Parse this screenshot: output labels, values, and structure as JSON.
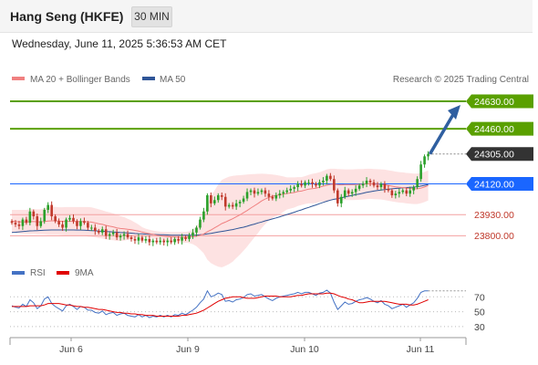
{
  "header": {
    "title": "Hang Seng (HKFE)",
    "timeframe": "30 MIN"
  },
  "date_line": "Wednesday, June 11, 2025 5:36:53 AM CET",
  "legend": {
    "ma20": {
      "label": "MA 20 + Bollinger Bands",
      "color": "#f08080"
    },
    "ma50": {
      "label": "MA 50",
      "color": "#2f5597"
    },
    "credit": "Research © 2025 Trading Central",
    "rsi": {
      "label": "RSI",
      "color": "#4472c4"
    },
    "rsi_ma": {
      "label": "9MA",
      "color": "#e00000"
    }
  },
  "colors": {
    "up": "#2aa02a",
    "down": "#c0392b",
    "resistance": "#5aa000",
    "pivot": "#1a66ff",
    "support": "#f4a0a0",
    "last": "#333333",
    "bands": "#fde2e2",
    "arrow": "#2f5fa0"
  },
  "chart_data": {
    "type": "candlestick",
    "price_range": [
      23650,
      24720
    ],
    "x_labels": [
      "Jun 6",
      "Jun 9",
      "Jun 10",
      "Jun 11"
    ],
    "levels": [
      {
        "value": 24630,
        "label": "24630.00",
        "kind": "resistance"
      },
      {
        "value": 24460,
        "label": "24460.00",
        "kind": "resistance"
      },
      {
        "value": 24305,
        "label": "24305.00",
        "kind": "last"
      },
      {
        "value": 24120,
        "label": "24120.00",
        "kind": "pivot"
      },
      {
        "value": 23930,
        "label": "23930.00",
        "kind": "support"
      },
      {
        "value": 23800,
        "label": "23800.00",
        "kind": "support"
      }
    ],
    "close": [
      23880,
      23870,
      23860,
      23900,
      23880,
      23950,
      23920,
      23860,
      23890,
      23960,
      23990,
      23920,
      23890,
      23870,
      23850,
      23900,
      23910,
      23890,
      23860,
      23890,
      23880,
      23850,
      23850,
      23830,
      23820,
      23840,
      23800,
      23810,
      23820,
      23790,
      23800,
      23810,
      23790,
      23780,
      23770,
      23790,
      23770,
      23780,
      23760,
      23770,
      23760,
      23770,
      23760,
      23770,
      23760,
      23780,
      23770,
      23790,
      23780,
      23800,
      23820,
      23850,
      23900,
      23950,
      24050,
      24000,
      24020,
      24050,
      24040,
      23980,
      23990,
      23980,
      24000,
      24010,
      24030,
      24070,
      24080,
      24060,
      24070,
      24080,
      24060,
      24040,
      24030,
      24050,
      24060,
      24070,
      24080,
      24090,
      24100,
      24120,
      24110,
      24130,
      24130,
      24120,
      24110,
      24130,
      24140,
      24170,
      24150,
      24080,
      24000,
      24040,
      24080,
      24060,
      24070,
      24090,
      24110,
      24120,
      24140,
      24130,
      24110,
      24100,
      24120,
      24090,
      24080,
      24050,
      24060,
      24070,
      24080,
      24060,
      24080,
      24100,
      24150,
      24240,
      24290,
      24305
    ],
    "ma20": [
      23890,
      23888,
      23886,
      23886,
      23885,
      23887,
      23888,
      23886,
      23886,
      23888,
      23891,
      23892,
      23892,
      23891,
      23889,
      23889,
      23889,
      23889,
      23888,
      23888,
      23888,
      23886,
      23884,
      23880,
      23874,
      23870,
      23864,
      23859,
      23855,
      23849,
      23845,
      23843,
      23840,
      23837,
      23833,
      23829,
      23823,
      23818,
      23813,
      23808,
      23803,
      23800,
      23797,
      23795,
      23793,
      23792,
      23791,
      23791,
      23791,
      23792,
      23794,
      23797,
      23803,
      23811,
      23825,
      23836,
      23849,
      23862,
      23875,
      23884,
      23895,
      23905,
      23917,
      23929,
      23942,
      23956,
      23971,
      23985,
      24000,
      24015,
      24027,
      24037,
      24044,
      24049,
      24052,
      24057,
      24061,
      24064,
      24067,
      24073,
      24076,
      24082,
      24088,
      24091,
      24094,
      24100,
      24106,
      24112,
      24117,
      24118,
      24115,
      24114,
      24115,
      24115,
      24115,
      24116,
      24117,
      24118,
      24120,
      24121,
      24119,
      24118,
      24117,
      24114,
      24110,
      24106,
      24102,
      24099,
      24097,
      24094,
      24092,
      24090,
      24090,
      24094,
      24101,
      24110
    ],
    "ma50": [
      23820,
      23822,
      23824,
      23826,
      23828,
      23830,
      23831,
      23832,
      23833,
      23834,
      23835,
      23836,
      23836,
      23836,
      23836,
      23836,
      23836,
      23836,
      23835,
      23835,
      23834,
      23833,
      23832,
      23831,
      23829,
      23828,
      23826,
      23825,
      23823,
      23822,
      23820,
      23819,
      23817,
      23816,
      23814,
      23813,
      23812,
      23810,
      23809,
      23808,
      23807,
      23806,
      23806,
      23805,
      23804,
      23804,
      23803,
      23803,
      23803,
      23803,
      23803,
      23804,
      23806,
      23808,
      23812,
      23815,
      23819,
      23823,
      23827,
      23830,
      23834,
      23838,
      23843,
      23848,
      23853,
      23859,
      23866,
      23872,
      23879,
      23885,
      23892,
      23898,
      23904,
      23910,
      23917,
      23924,
      23931,
      23938,
      23945,
      23953,
      23960,
      23968,
      23975,
      23983,
      23990,
      23998,
      24006,
      24013,
      24020,
      24025,
      24029,
      24034,
      24039,
      24044,
      24049,
      24054,
      24058,
      24063,
      24068,
      24072,
      24076,
      24079,
      24082,
      24085,
      24087,
      24090,
      24092,
      24094,
      24096,
      24097,
      24099,
      24100,
      24103,
      24107,
      24111,
      24116
    ],
    "bb_upper": [
      23960,
      23960,
      23960,
      23960,
      23960,
      23964,
      23964,
      23963,
      23963,
      23968,
      23976,
      23978,
      23978,
      23976,
      23976,
      23977,
      23977,
      23977,
      23977,
      23977,
      23977,
      23977,
      23975,
      23970,
      23963,
      23957,
      23950,
      23944,
      23938,
      23930,
      23922,
      23915,
      23905,
      23895,
      23882,
      23869,
      23853,
      23844,
      23837,
      23832,
      23828,
      23825,
      23824,
      23823,
      23823,
      23823,
      23823,
      23824,
      23824,
      23828,
      23840,
      23858,
      23891,
      23930,
      23998,
      24040,
      24079,
      24116,
      24145,
      24155,
      24165,
      24170,
      24172,
      24174,
      24176,
      24178,
      24180,
      24181,
      24182,
      24183,
      24182,
      24180,
      24178,
      24175,
      24171,
      24166,
      24160,
      24160,
      24160,
      24162,
      24162,
      24168,
      24176,
      24182,
      24186,
      24192,
      24200,
      24210,
      24214,
      24214,
      24212,
      24211,
      24210,
      24210,
      24210,
      24211,
      24212,
      24212,
      24214,
      24214,
      24212,
      24211,
      24210,
      24208,
      24204,
      24200,
      24196,
      24193,
      24191,
      24188,
      24186,
      24184,
      24184,
      24187,
      24194,
      24203
    ],
    "bb_lower": [
      23820,
      23818,
      23815,
      23813,
      23811,
      23810,
      23811,
      23809,
      23809,
      23808,
      23806,
      23806,
      23806,
      23806,
      23803,
      23802,
      23802,
      23802,
      23800,
      23800,
      23800,
      23795,
      23793,
      23790,
      23785,
      23783,
      23778,
      23774,
      23772,
      23768,
      23768,
      23770,
      23775,
      23779,
      23784,
      23790,
      23793,
      23792,
      23789,
      23784,
      23778,
      23775,
      23770,
      23767,
      23764,
      23761,
      23759,
      23757,
      23757,
      23755,
      23748,
      23735,
      23715,
      23692,
      23652,
      23631,
      23619,
      23609,
      23605,
      23614,
      23625,
      23640,
      23662,
      23684,
      23708,
      23734,
      23762,
      23789,
      23818,
      23847,
      23872,
      23894,
      23910,
      23923,
      23933,
      23948,
      23962,
      23968,
      23974,
      23984,
      23990,
      23996,
      24000,
      24000,
      24002,
      24008,
      24012,
      24014,
      24020,
      24022,
      24018,
      24017,
      24020,
      24020,
      24020,
      24021,
      24022,
      24024,
      24026,
      24028,
      24026,
      24025,
      24024,
      24020,
      24016,
      24012,
      24008,
      24005,
      24003,
      24000,
      23998,
      23996,
      23996,
      24001,
      24008,
      24017
    ],
    "rsi": [
      58,
      56,
      55,
      60,
      57,
      66,
      62,
      54,
      58,
      67,
      70,
      61,
      57,
      54,
      51,
      58,
      60,
      57,
      53,
      57,
      56,
      52,
      52,
      49,
      48,
      51,
      46,
      48,
      49,
      45,
      47,
      48,
      45,
      44,
      43,
      46,
      43,
      45,
      42,
      44,
      43,
      45,
      43,
      45,
      43,
      46,
      45,
      48,
      46,
      49,
      52,
      56,
      62,
      67,
      78,
      70,
      72,
      75,
      73,
      64,
      65,
      63,
      66,
      67,
      69,
      73,
      74,
      71,
      72,
      73,
      70,
      67,
      65,
      68,
      70,
      71,
      72,
      73,
      74,
      76,
      74,
      76,
      76,
      74,
      72,
      75,
      76,
      79,
      75,
      63,
      53,
      58,
      63,
      60,
      61,
      64,
      66,
      67,
      69,
      67,
      64,
      62,
      65,
      60,
      58,
      54,
      56,
      58,
      60,
      56,
      59,
      62,
      68,
      76,
      78,
      78
    ],
    "rsi_ma": [
      57,
      57,
      57,
      57,
      57,
      58,
      58,
      58,
      58,
      59,
      61,
      61,
      61,
      61,
      60,
      59,
      59,
      58,
      57,
      57,
      56,
      56,
      55,
      54,
      53,
      53,
      52,
      51,
      50,
      49,
      49,
      48,
      48,
      47,
      47,
      46,
      46,
      45,
      45,
      45,
      44,
      44,
      44,
      44,
      44,
      44,
      44,
      45,
      45,
      46,
      47,
      48,
      50,
      52,
      55,
      58,
      61,
      64,
      66,
      68,
      69,
      70,
      70,
      70,
      69,
      68,
      68,
      68,
      69,
      70,
      71,
      71,
      71,
      71,
      70,
      70,
      70,
      70,
      71,
      72,
      72,
      73,
      74,
      74,
      74,
      74,
      74,
      75,
      75,
      74,
      72,
      70,
      69,
      67,
      66,
      64,
      62,
      62,
      63,
      64,
      64,
      64,
      64,
      64,
      63,
      62,
      61,
      60,
      60,
      60,
      59,
      59,
      60,
      62,
      64,
      66
    ],
    "rsi_ticks": [
      70,
      50,
      30
    ]
  }
}
